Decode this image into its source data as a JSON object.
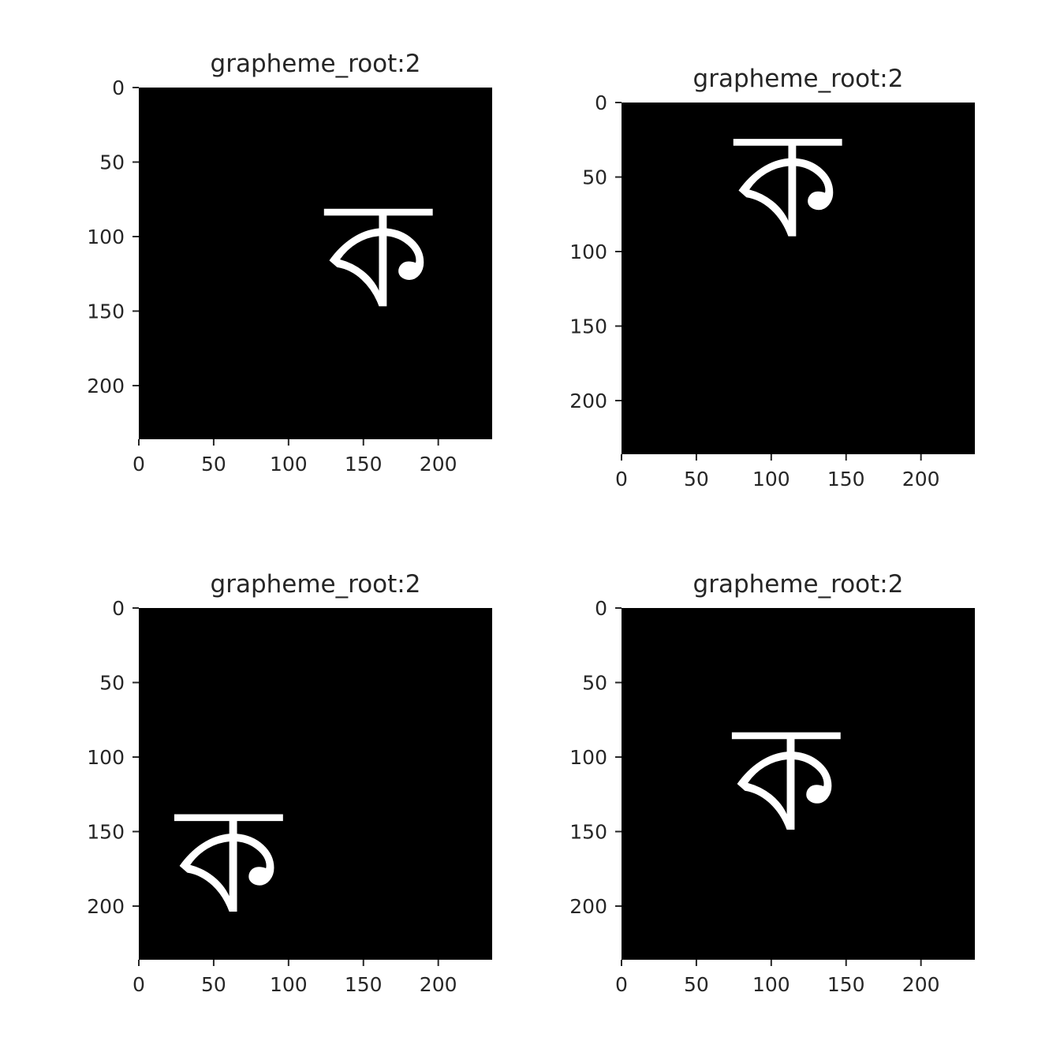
{
  "chart_data": [
    {
      "type": "image",
      "title": "grapheme_root:2",
      "xlim": [
        0,
        236
      ],
      "ylim": [
        236,
        0
      ],
      "xticks": [
        0,
        50,
        100,
        150,
        200
      ],
      "yticks": [
        0,
        50,
        100,
        150,
        200
      ],
      "image": {
        "glyph": "ক",
        "center_x": 160,
        "center_y": 115,
        "colormap": "gray",
        "background": "#000000",
        "foreground": "#ffffff"
      }
    },
    {
      "type": "image",
      "title": "grapheme_root:2",
      "xlim": [
        0,
        236
      ],
      "ylim": [
        236,
        0
      ],
      "xticks": [
        0,
        50,
        100,
        150,
        200
      ],
      "yticks": [
        0,
        50,
        100,
        150,
        200
      ],
      "image": {
        "glyph": "ক",
        "center_x": 111,
        "center_y": 58,
        "colormap": "gray",
        "background": "#000000",
        "foreground": "#ffffff"
      }
    },
    {
      "type": "image",
      "title": "grapheme_root:2",
      "xlim": [
        0,
        236
      ],
      "ylim": [
        236,
        0
      ],
      "xticks": [
        0,
        50,
        100,
        150,
        200
      ],
      "yticks": [
        0,
        50,
        100,
        150,
        200
      ],
      "image": {
        "glyph": "ক",
        "center_x": 60,
        "center_y": 172,
        "colormap": "gray",
        "background": "#000000",
        "foreground": "#ffffff"
      }
    },
    {
      "type": "image",
      "title": "grapheme_root:2",
      "xlim": [
        0,
        236
      ],
      "ylim": [
        236,
        0
      ],
      "xticks": [
        0,
        50,
        100,
        150,
        200
      ],
      "yticks": [
        0,
        50,
        100,
        150,
        200
      ],
      "image": {
        "glyph": "ক",
        "center_x": 110,
        "center_y": 117,
        "colormap": "gray",
        "background": "#000000",
        "foreground": "#ffffff"
      }
    }
  ]
}
